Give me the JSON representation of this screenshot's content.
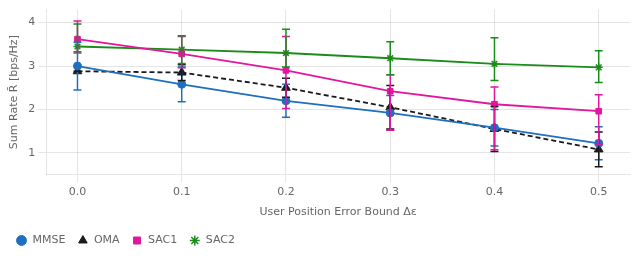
{
  "chart_data": {
    "type": "line",
    "xlabel": "User Position Error Bound Δε",
    "ylabel": "Sum Rate R̄ [bps/Hz]",
    "x": [
      0.0,
      0.1,
      0.2,
      0.3,
      0.4,
      0.5
    ],
    "xlim": [
      -0.03,
      0.53
    ],
    "xticks": [
      {
        "value": 0.0,
        "label": "0.0"
      },
      0.1,
      0.2,
      0.3,
      0.4,
      0.5
    ],
    "ylim": [
      0.5,
      4.3
    ],
    "yticks": [
      1,
      2,
      3,
      4
    ],
    "grid": true,
    "legend": "lower left",
    "series": [
      {
        "name": "MMSE",
        "color": "#1f6fbf",
        "marker": "circle",
        "line_style": "solid",
        "values": [
          3.0,
          2.58,
          2.2,
          1.92,
          1.58,
          1.22
        ],
        "error_low": [
          0.55,
          0.4,
          0.38,
          0.4,
          0.42,
          0.38
        ],
        "error_high": [
          0.55,
          0.4,
          0.38,
          0.4,
          0.42,
          0.38
        ]
      },
      {
        "name": "OMA",
        "color": "#1a1a1a",
        "marker": "triangle",
        "line_style": "dashed",
        "values": [
          2.88,
          2.85,
          2.5,
          2.05,
          1.55,
          1.08
        ],
        "error_low": [
          0.0,
          0.18,
          0.22,
          0.5,
          0.52,
          0.4
        ],
        "error_high": [
          0.0,
          0.18,
          0.22,
          0.5,
          0.52,
          0.4
        ]
      },
      {
        "name": "SAC1",
        "color": "#e0189e",
        "marker": "square",
        "line_style": "solid",
        "values": [
          3.62,
          3.28,
          2.9,
          2.42,
          2.12,
          1.96
        ],
        "error_low": [
          0.32,
          0.32,
          0.88,
          0.9,
          1.05,
          0.78
        ],
        "error_high": [
          0.42,
          0.4,
          0.78,
          0.38,
          0.4,
          0.38
        ]
      },
      {
        "name": "SAC2",
        "color": "#1a8c1a",
        "marker": "asterisk",
        "line_style": "solid",
        "values": [
          3.45,
          3.38,
          3.3,
          3.18,
          3.05,
          2.97
        ],
        "error_low": [
          0.12,
          0.32,
          0.32,
          0.38,
          0.38,
          0.35
        ],
        "error_high": [
          0.52,
          0.32,
          0.55,
          0.38,
          0.6,
          0.38
        ]
      }
    ]
  }
}
